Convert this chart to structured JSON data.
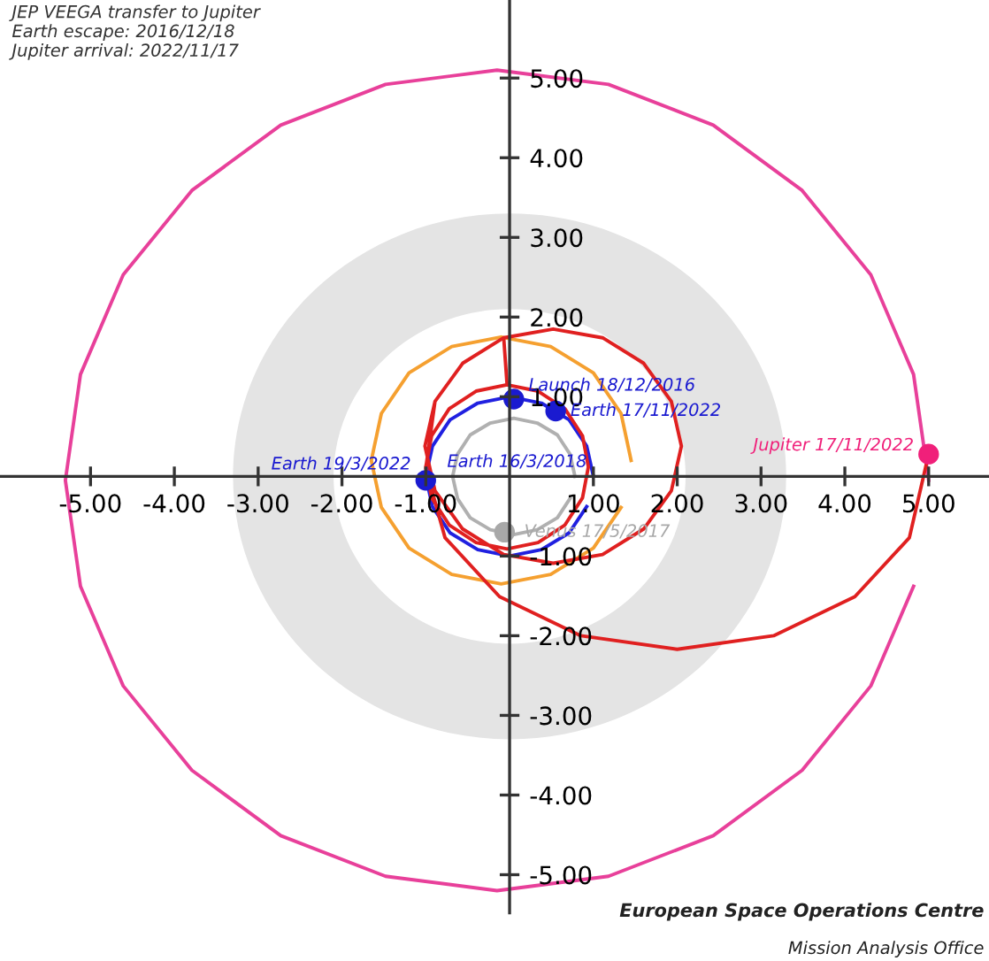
{
  "chart_data": {
    "type": "line",
    "title": "JEP VEEGA transfer to Jupiter",
    "subtitle": "Earth escape: 2016/12/18\nJupiter arrival: 2022/11/17",
    "xlim": [
      -6.08,
      5.72
    ],
    "ylim": [
      -5.48,
      5.98
    ],
    "xticks": [
      {
        "value": -5,
        "label": "-5.00"
      },
      {
        "value": -4,
        "label": "-4.00"
      },
      {
        "value": -3,
        "label": "-3.00"
      },
      {
        "value": -2,
        "label": "-2.00"
      },
      {
        "value": -1,
        "label": "-1.00"
      },
      {
        "value": 1,
        "label": "1.00"
      },
      {
        "value": 2,
        "label": "2.00"
      },
      {
        "value": 3,
        "label": "3.00"
      },
      {
        "value": 4,
        "label": "4.00"
      },
      {
        "value": 5,
        "label": "5.00"
      }
    ],
    "yticks": [
      {
        "value": -5,
        "label": "-5.00"
      },
      {
        "value": -4,
        "label": "-4.00"
      },
      {
        "value": -3,
        "label": "-3.00"
      },
      {
        "value": -2,
        "label": "-2.00"
      },
      {
        "value": -1,
        "label": "-1.00"
      },
      {
        "value": 1,
        "label": "1.00"
      },
      {
        "value": 2,
        "label": "2.00"
      },
      {
        "value": 3,
        "label": "3.00"
      },
      {
        "value": 4,
        "label": "4.00"
      },
      {
        "value": 5,
        "label": "5.00"
      }
    ],
    "grid": false,
    "line_style": "solid",
    "series": [
      {
        "type": "line",
        "color": "#e8409a",
        "x": [
          5.0,
          4.82,
          4.31,
          3.49,
          2.43,
          1.18,
          -0.15,
          -1.48,
          -2.73,
          -3.79,
          -4.61,
          -5.12,
          -5.3,
          -5.12,
          -4.61,
          -3.79,
          -2.73,
          -1.48,
          -0.15,
          1.18,
          2.43,
          3.49,
          4.31,
          4.82,
          5.0
        ],
        "values": [
          -0.05,
          1.28,
          2.53,
          3.59,
          4.41,
          4.92,
          5.1,
          4.92,
          4.41,
          3.59,
          2.53,
          1.28,
          -0.05,
          -1.38,
          -2.63,
          -3.69,
          -4.51,
          -5.02,
          -5.2,
          -5.02,
          -4.51,
          -3.69,
          -2.63,
          -1.38,
          -0.05
        ]
      },
      {
        "type": "line",
        "color": "#f5a030",
        "x": [
          1.45,
          1.33,
          1.0,
          0.49,
          -0.1,
          -0.69,
          -1.2,
          -1.53,
          -1.65,
          -1.53,
          -1.2,
          -0.69,
          -0.1,
          0.49,
          1.0,
          1.33,
          1.45
        ],
        "values": [
          0.2,
          0.79,
          1.3,
          1.63,
          1.75,
          1.63,
          1.3,
          0.79,
          0.2,
          -0.39,
          -0.9,
          -1.23,
          -1.35,
          -1.23,
          -0.9,
          -0.39,
          0.2
        ]
      },
      {
        "type": "line",
        "color": "#2020e0",
        "x": [
          1,
          0.92,
          0.71,
          0.38,
          0,
          -0.38,
          -0.71,
          -0.92,
          -1,
          -0.92,
          -0.71,
          -0.38,
          0,
          0.38,
          0.71,
          0.92,
          1
        ],
        "values": [
          0,
          0.38,
          0.71,
          0.92,
          1,
          0.92,
          0.71,
          0.38,
          0,
          -0.38,
          -0.71,
          -0.92,
          -1,
          -0.92,
          -0.71,
          -0.38,
          0
        ]
      },
      {
        "type": "line",
        "color": "#b0b0b0",
        "x": [
          0.78,
          0.72,
          0.57,
          0.33,
          0.05,
          -0.23,
          -0.47,
          -0.62,
          -0.68,
          -0.62,
          -0.47,
          -0.23,
          0.05,
          0.33,
          0.57,
          0.72,
          0.78
        ],
        "values": [
          0,
          0.28,
          0.52,
          0.67,
          0.73,
          0.67,
          0.52,
          0.28,
          0,
          -0.28,
          -0.52,
          -0.67,
          -0.73,
          -0.67,
          -0.52,
          -0.28,
          0
        ]
      },
      {
        "type": "line",
        "color": "#e02020",
        "x": [
          -0.03,
          -0.4,
          -0.72,
          -0.93,
          -1.0,
          -0.93,
          -0.72,
          -0.4,
          -0.03,
          0.34,
          0.66,
          0.87,
          0.94,
          0.87,
          0.66,
          0.34,
          -0.03,
          -0.07,
          -0.56,
          -0.89,
          -1.01,
          -0.89,
          -0.56,
          -0.07,
          0.52,
          1.11,
          1.6,
          1.93,
          2.05,
          1.93,
          1.6,
          1.11,
          0.52,
          -0.07,
          -0.56,
          -0.89,
          -1.0,
          -0.77,
          -0.12,
          0.85,
          2.0,
          3.15,
          4.12,
          4.77,
          5.0
        ],
        "values": [
          1.15,
          1.07,
          0.85,
          0.51,
          0.12,
          -0.27,
          -0.61,
          -0.83,
          -0.91,
          -0.83,
          -0.61,
          -0.27,
          0.12,
          0.51,
          0.85,
          1.07,
          1.15,
          1.74,
          1.42,
          0.94,
          0.38,
          -0.18,
          -0.66,
          -0.98,
          -1.09,
          -0.98,
          -0.66,
          -0.18,
          0.38,
          0.94,
          1.42,
          1.74,
          1.85,
          1.74,
          1.42,
          0.94,
          0.1,
          -0.77,
          -1.51,
          -2.0,
          -2.17,
          -2.0,
          -1.51,
          -0.77,
          0.28
        ]
      },
      {
        "type": "scatter",
        "colors": [
          "#1a1ad0",
          "#1a1ad0",
          "#1a1ad0",
          "#1a1ad0",
          "#a8a8a8",
          "#f0207a"
        ],
        "x": [
          0.05,
          0.55,
          -1.0,
          null,
          -0.06,
          5.0
        ],
        "values": [
          0.97,
          0.82,
          -0.05,
          null,
          -0.7,
          0.28
        ]
      }
    ],
    "annotations": [
      {
        "text": "Launch 18/12/2016",
        "x": 0.05,
        "y": 0.97
      },
      {
        "text": "Earth 17/11/2022",
        "x": 0.55,
        "y": 0.82
      },
      {
        "text": "Earth 19/3/2022",
        "x": -1.0,
        "y": -0.05
      },
      {
        "text": "Earth 16/3/2018",
        "x": -0.98,
        "y": -0.02
      },
      {
        "text": "Venus 17/5/2017",
        "x": -0.06,
        "y": -0.7
      },
      {
        "text": "Jupiter 17/11/2022",
        "x": 5.0,
        "y": 0.28
      },
      "European Space Operations Centre",
      "Mission Analysis Office"
    ]
  }
}
